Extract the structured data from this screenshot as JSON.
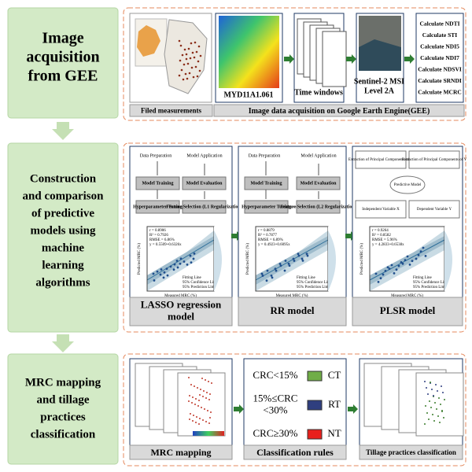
{
  "steps": [
    [
      "Image",
      "acquisition",
      "from GEE"
    ],
    [
      "Construction",
      "and comparison",
      "of predictive",
      "models using",
      "machine",
      "learning",
      "algorithms"
    ],
    [
      "MRC mapping",
      "and tillage",
      "practices",
      "classification"
    ]
  ],
  "acquisition": {
    "field_caption": "Filed measurements",
    "gee_caption": "Image data acquisition on Google Earth Engine(GEE)",
    "modis": "MYD11A1.061",
    "time": "Time windows",
    "sentinel": [
      "Sentinel-2 MSI",
      "Level 2A"
    ],
    "indices": [
      "Calculate NDTI",
      "Calculate STI",
      "Calculate NDI5",
      "Calculate NDI7",
      "Calculate NDSVI",
      "Calculate SRNDI",
      "Calculate MCRC"
    ]
  },
  "models": [
    {
      "caption": [
        "LASSO regression",
        "model"
      ],
      "flow": [
        "Data Preparation",
        "Model Training",
        "Hyperparameter Tuning",
        "Model Application",
        "Model Evaluation",
        "Feature Selection (L1 Regularization)"
      ],
      "stats": [
        "r = 0.8906",
        "R² = 0.7926",
        "RMSE = 6.86%",
        "y = 0.5509+0.6326x"
      ]
    },
    {
      "caption": [
        "RR model"
      ],
      "flow": [
        "Data Preparation",
        "Model Training",
        "Hyperparameter Tuning",
        "Model Application",
        "Model Evaluation",
        "Feature Selection (L2 Regularization)"
      ],
      "stats": [
        "r = 0.8879",
        "R² = 0.7877",
        "RMSE = 6.89%",
        "y = 0.4923+0.6095x"
      ]
    },
    {
      "caption": [
        "PLSR model"
      ],
      "flow": [
        "Extraction of Principal Components of X",
        "Extraction of Principal Components of Y",
        "Independent Variable X",
        "Dependent Variable Y",
        "Predictive Model"
      ],
      "stats": [
        "r = 0.9264",
        "R² = 0.8582",
        "RMSE = 5.96%",
        "y = 4.2833+0.6538x"
      ]
    }
  ],
  "plot": {
    "legend": [
      "Fitting Line",
      "95% Confidence Limit",
      "95% Prediction Limit"
    ],
    "xlabel": "Measured MRC (%)",
    "ylabel": "Predicted MRC (%)"
  },
  "mapping": {
    "mrc_caption": "MRC mapping",
    "rules_caption": "Classification rules",
    "tillage_caption": "Tillage practices classification",
    "rules": [
      {
        "condition": [
          "CRC<15%"
        ],
        "class": "CT",
        "color": "#70ad47"
      },
      {
        "condition": [
          "15%≤CRC",
          "<30%"
        ],
        "class": "RT",
        "color": "#2f3f7f"
      },
      {
        "condition": [
          "CRC≥30%"
        ],
        "class": "NT",
        "color": "#e8201c"
      }
    ]
  }
}
